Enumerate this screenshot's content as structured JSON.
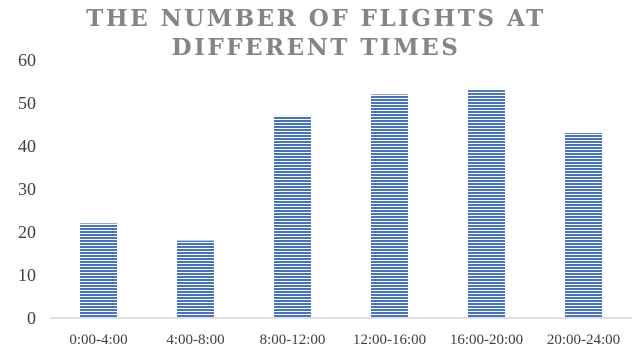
{
  "chart_data": {
    "type": "bar",
    "title_lines": [
      "THE NUMBER OF FLIGHTS AT",
      "DIFFERENT TIMES"
    ],
    "categories": [
      "0:00-4:00",
      "4:00-8:00",
      "8:00-12:00",
      "12:00-16:00",
      "16:00-20:00",
      "20:00-24:00"
    ],
    "values": [
      22,
      18,
      47,
      52,
      53,
      43
    ],
    "ylim": [
      0,
      60
    ],
    "yticks": [
      "0",
      "10",
      "20",
      "30",
      "40",
      "50",
      "60"
    ],
    "xlabel": "",
    "ylabel": "",
    "grid": false,
    "legend": "none",
    "bar_color": "#4472C4",
    "bar_pattern": "horizontal-stripes"
  }
}
